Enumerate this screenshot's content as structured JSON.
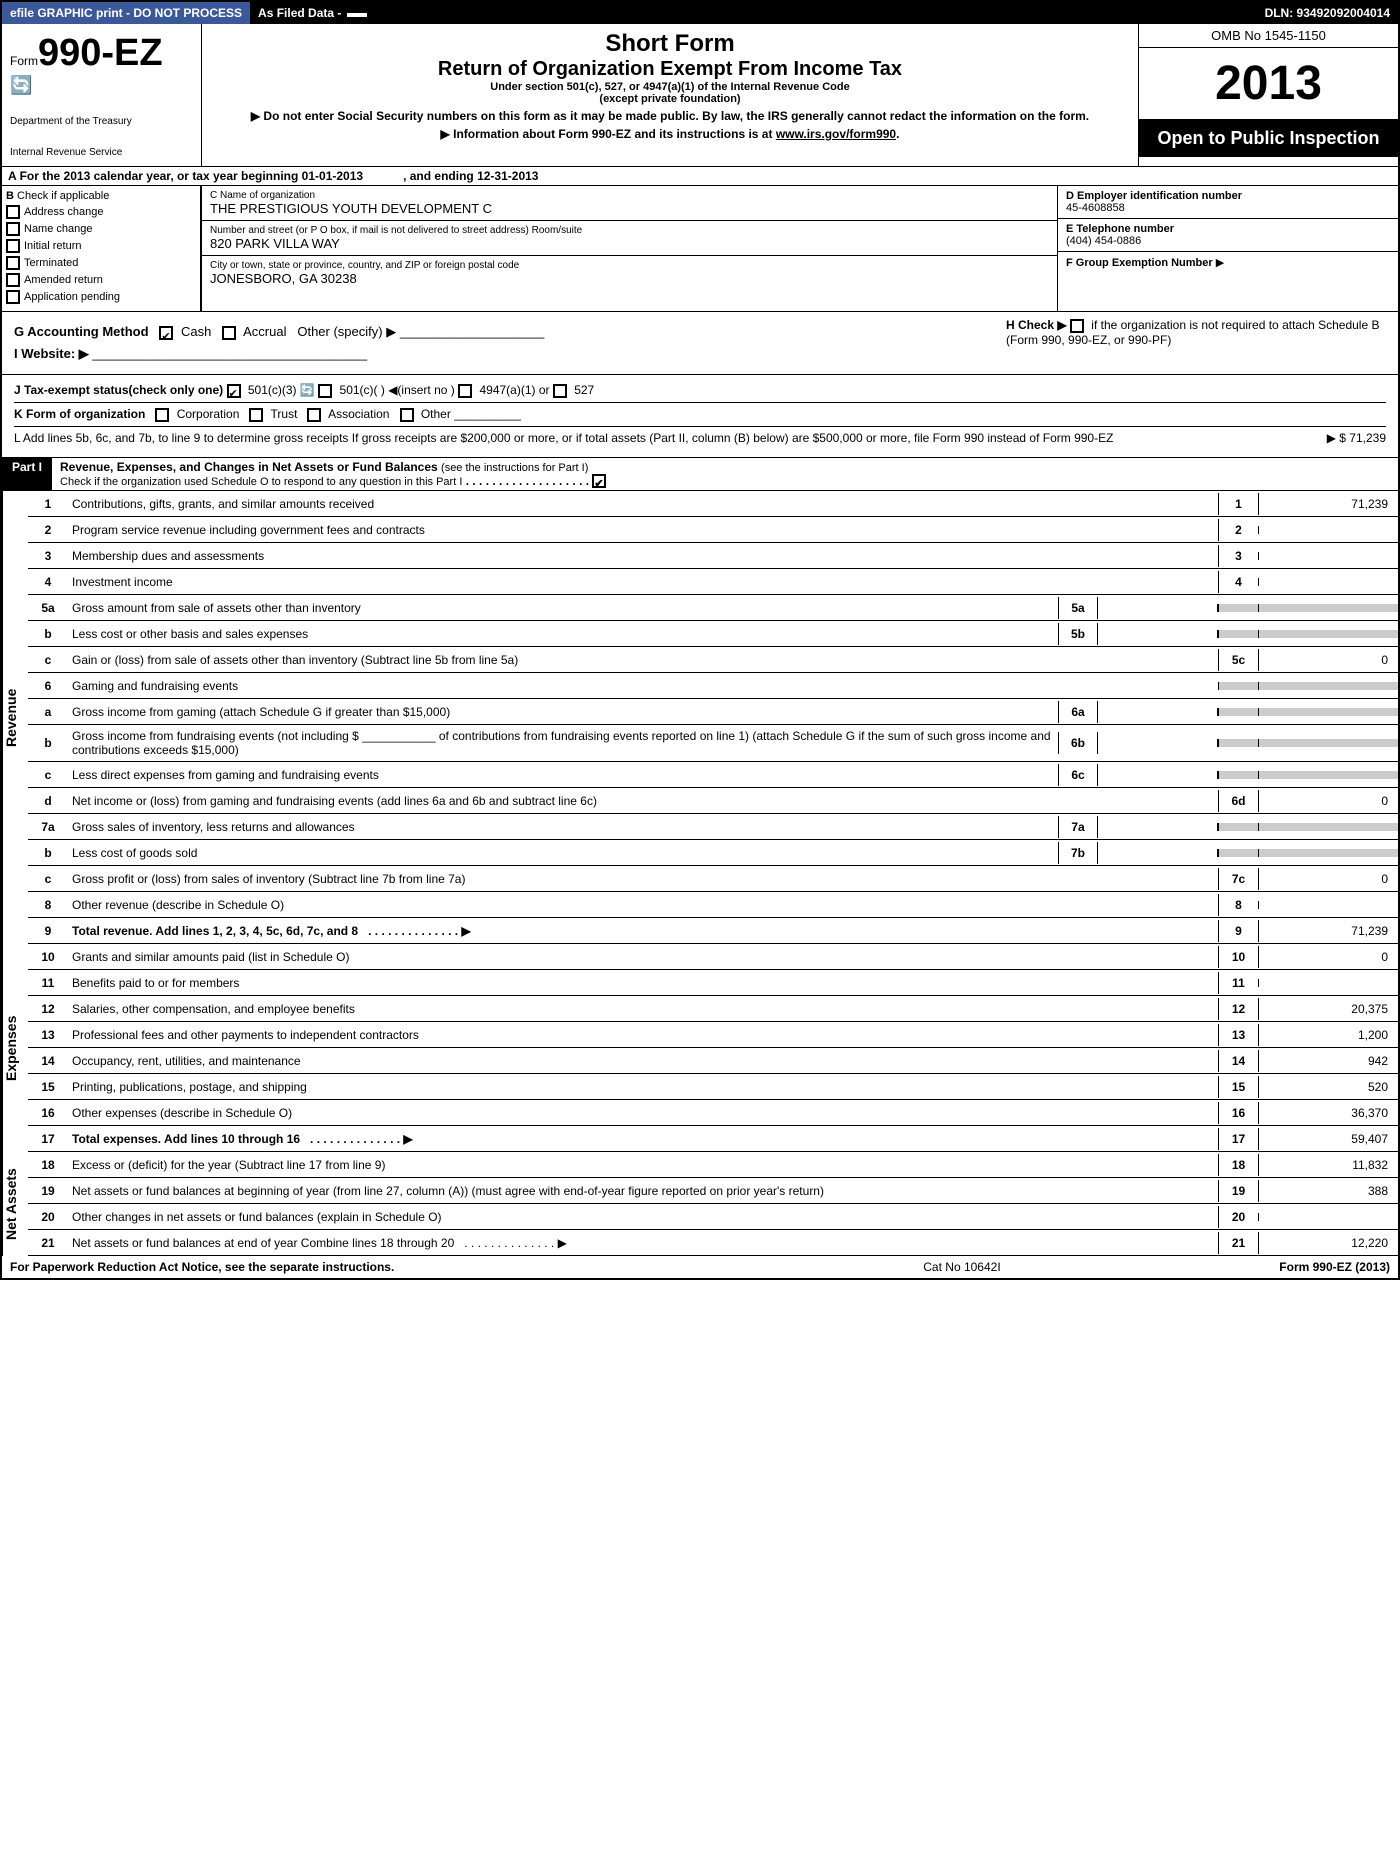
{
  "topbar": {
    "efile": "efile GRAPHIC print - DO NOT PROCESS",
    "asfiled": "As Filed Data -",
    "dln": "DLN: 93492092004014"
  },
  "header": {
    "form_prefix": "Form",
    "form_num": "990-EZ",
    "dept1": "Department of the Treasury",
    "dept2": "Internal Revenue Service",
    "short_form": "Short Form",
    "title": "Return of Organization Exempt From Income Tax",
    "sub1": "Under section 501(c), 527, or 4947(a)(1) of the Internal Revenue Code",
    "sub2": "(except private foundation)",
    "warn": "Do not enter Social Security numbers on this form as it may be made public. By law, the IRS generally cannot redact the information on the form.",
    "info": "Information about Form 990-EZ and its instructions is at",
    "info_link": "www.irs.gov/form990",
    "omb": "OMB No 1545-1150",
    "year": "2013",
    "open": "Open to Public Inspection"
  },
  "rowA": "For the 2013 calendar year, or tax year beginning 01-01-2013",
  "rowA_end": ", and ending 12-31-2013",
  "boxB": {
    "title": "Check if applicable",
    "items": [
      "Address change",
      "Name change",
      "Initial return",
      "Terminated",
      "Amended return",
      "Application pending"
    ]
  },
  "boxC": {
    "name_label": "C Name of organization",
    "name": "THE PRESTIGIOUS YOUTH DEVELOPMENT C",
    "street_label": "Number and street (or P O box, if mail is not delivered to street address) Room/suite",
    "street": "820 PARK VILLA WAY",
    "city_label": "City or town, state or province, country, and ZIP or foreign postal code",
    "city": "JONESBORO, GA 30238"
  },
  "boxDE": {
    "d_label": "D Employer identification number",
    "d_val": "45-4608858",
    "e_label": "E Telephone number",
    "e_val": "(404) 454-0886",
    "f_label": "F Group Exemption Number",
    "f_arrow": "▶"
  },
  "ghi": {
    "g": "G Accounting Method",
    "g_cash": "Cash",
    "g_accrual": "Accrual",
    "g_other": "Other (specify) ▶",
    "h": "H Check ▶",
    "h_text": "if the organization is not required to attach Schedule B (Form 990, 990-EZ, or 990-PF)",
    "i": "I Website: ▶"
  },
  "jkl": {
    "j": "J Tax-exempt status(check only one)",
    "j_501c3": "501(c)(3)",
    "j_501c": "501(c)(  ) ◀(insert no )",
    "j_4947": "4947(a)(1) or",
    "j_527": "527",
    "k": "K Form of organization",
    "k_corp": "Corporation",
    "k_trust": "Trust",
    "k_assoc": "Association",
    "k_other": "Other",
    "l": "L Add lines 5b, 6c, and 7b, to line 9 to determine gross receipts  If gross receipts are $200,000 or more, or if total assets (Part II, column (B) below) are $500,000 or more, file Form 990 instead of Form 990-EZ",
    "l_val": "▶ $ 71,239"
  },
  "part1": {
    "label": "Part I",
    "title": "Revenue, Expenses, and Changes in Net Assets or Fund Balances",
    "instr": "(see the instructions for Part I)",
    "schedO": "Check if the organization used Schedule O to respond to any question in this Part I"
  },
  "sides": {
    "revenue": "Revenue",
    "expenses": "Expenses",
    "netassets": "Net Assets"
  },
  "lines": {
    "l1": {
      "n": "1",
      "d": "Contributions, gifts, grants, and similar amounts received",
      "r": "1",
      "v": "71,239"
    },
    "l2": {
      "n": "2",
      "d": "Program service revenue including government fees and contracts",
      "r": "2",
      "v": ""
    },
    "l3": {
      "n": "3",
      "d": "Membership dues and assessments",
      "r": "3",
      "v": ""
    },
    "l4": {
      "n": "4",
      "d": "Investment income",
      "r": "4",
      "v": ""
    },
    "l5a": {
      "n": "5a",
      "d": "Gross amount from sale of assets other than inventory",
      "m": "5a"
    },
    "l5b": {
      "n": "b",
      "d": "Less cost or other basis and sales expenses",
      "m": "5b"
    },
    "l5c": {
      "n": "c",
      "d": "Gain or (loss) from sale of assets other than inventory (Subtract line 5b from line 5a)",
      "r": "5c",
      "v": "0"
    },
    "l6": {
      "n": "6",
      "d": "Gaming and fundraising events"
    },
    "l6a": {
      "n": "a",
      "d": "Gross income from gaming (attach Schedule G if greater than $15,000)",
      "m": "6a"
    },
    "l6b": {
      "n": "b",
      "d": "Gross income from fundraising events (not including $ ___________ of contributions from fundraising events reported on line 1) (attach Schedule G if the sum of such gross income and contributions exceeds $15,000)",
      "m": "6b"
    },
    "l6c": {
      "n": "c",
      "d": "Less direct expenses from gaming and fundraising events",
      "m": "6c"
    },
    "l6d": {
      "n": "d",
      "d": "Net income or (loss) from gaming and fundraising events (add lines 6a and 6b and subtract line 6c)",
      "r": "6d",
      "v": "0"
    },
    "l7a": {
      "n": "7a",
      "d": "Gross sales of inventory, less returns and allowances",
      "m": "7a"
    },
    "l7b": {
      "n": "b",
      "d": "Less cost of goods sold",
      "m": "7b"
    },
    "l7c": {
      "n": "c",
      "d": "Gross profit or (loss) from sales of inventory (Subtract line 7b from line 7a)",
      "r": "7c",
      "v": "0"
    },
    "l8": {
      "n": "8",
      "d": "Other revenue (describe in Schedule O)",
      "r": "8",
      "v": ""
    },
    "l9": {
      "n": "9",
      "d": "Total revenue. Add lines 1, 2, 3, 4, 5c, 6d, 7c, and 8",
      "r": "9",
      "v": "71,239",
      "bold": true,
      "arrow": true
    },
    "l10": {
      "n": "10",
      "d": "Grants and similar amounts paid (list in Schedule O)",
      "r": "10",
      "v": "0"
    },
    "l11": {
      "n": "11",
      "d": "Benefits paid to or for members",
      "r": "11",
      "v": ""
    },
    "l12": {
      "n": "12",
      "d": "Salaries, other compensation, and employee benefits",
      "r": "12",
      "v": "20,375"
    },
    "l13": {
      "n": "13",
      "d": "Professional fees and other payments to independent contractors",
      "r": "13",
      "v": "1,200"
    },
    "l14": {
      "n": "14",
      "d": "Occupancy, rent, utilities, and maintenance",
      "r": "14",
      "v": "942"
    },
    "l15": {
      "n": "15",
      "d": "Printing, publications, postage, and shipping",
      "r": "15",
      "v": "520"
    },
    "l16": {
      "n": "16",
      "d": "Other expenses (describe in Schedule O)",
      "r": "16",
      "v": "36,370"
    },
    "l17": {
      "n": "17",
      "d": "Total expenses. Add lines 10 through 16",
      "r": "17",
      "v": "59,407",
      "bold": true,
      "arrow": true
    },
    "l18": {
      "n": "18",
      "d": "Excess or (deficit) for the year (Subtract line 17 from line 9)",
      "r": "18",
      "v": "11,832"
    },
    "l19": {
      "n": "19",
      "d": "Net assets or fund balances at beginning of year (from line 27, column (A)) (must agree with end-of-year figure reported on prior year's return)",
      "r": "19",
      "v": "388"
    },
    "l20": {
      "n": "20",
      "d": "Other changes in net assets or fund balances (explain in Schedule O)",
      "r": "20",
      "v": ""
    },
    "l21": {
      "n": "21",
      "d": "Net assets or fund balances at end of year Combine lines 18 through 20",
      "r": "21",
      "v": "12,220",
      "arrow": true
    }
  },
  "footer": {
    "left": "For Paperwork Reduction Act Notice, see the separate instructions.",
    "mid": "Cat No 10642I",
    "right": "Form 990-EZ (2013)"
  }
}
